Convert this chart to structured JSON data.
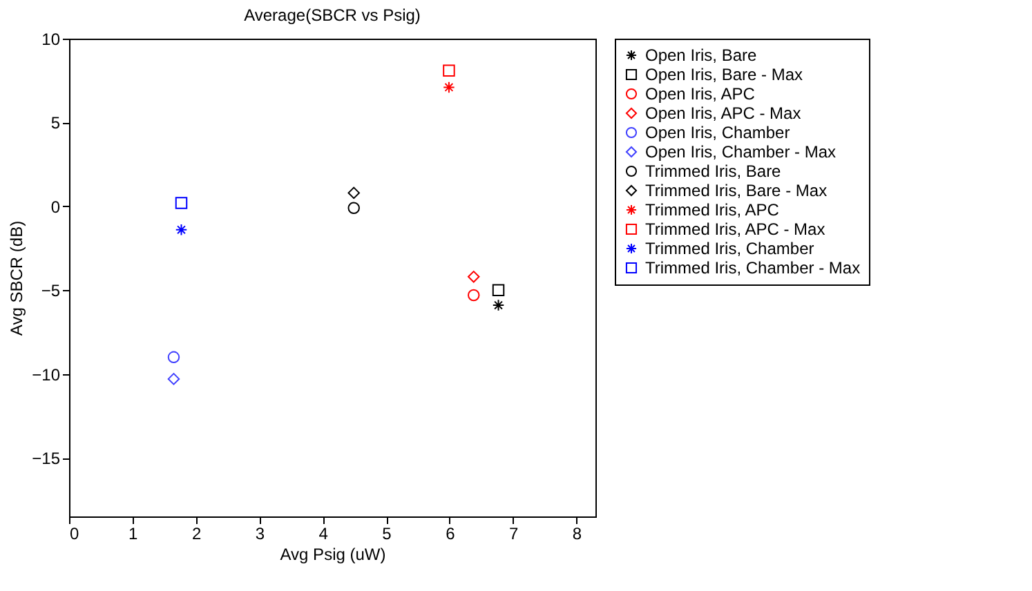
{
  "chart_data": {
    "type": "scatter",
    "title": "Average(SBCR vs Psig)",
    "xlabel": "Avg Psig (uW)",
    "ylabel": "Avg SBCR (dB)",
    "xlim": [
      0,
      8.3
    ],
    "ylim": [
      -18.5,
      10
    ],
    "xticks": [
      0,
      1,
      2,
      3,
      4,
      5,
      6,
      7,
      8
    ],
    "yticks": [
      -15,
      -10,
      -5,
      0,
      5,
      10
    ],
    "legend": "right",
    "series": [
      {
        "name": "Open Iris, Bare",
        "color": "#000000",
        "marker": "cross",
        "x": [
          6.77
        ],
        "values": [
          -5.9
        ]
      },
      {
        "name": "Open Iris, Bare - Max",
        "color": "#000000",
        "marker": "square",
        "x": [
          6.77
        ],
        "values": [
          -5.0
        ]
      },
      {
        "name": "Open Iris, APC",
        "color": "#ff0000",
        "marker": "circle",
        "x": [
          6.38
        ],
        "values": [
          -5.3
        ]
      },
      {
        "name": "Open Iris, APC - Max",
        "color": "#ff0000",
        "marker": "diamond",
        "x": [
          6.38
        ],
        "values": [
          -4.2
        ]
      },
      {
        "name": "Open Iris, Chamber",
        "color": "#4040ff",
        "marker": "circle",
        "x": [
          1.65
        ],
        "values": [
          -9.0
        ]
      },
      {
        "name": "Open Iris, Chamber - Max",
        "color": "#4040ff",
        "marker": "diamond",
        "x": [
          1.65
        ],
        "values": [
          -10.3
        ]
      },
      {
        "name": "Trimmed Iris, Bare",
        "color": "#000000",
        "marker": "circle",
        "x": [
          4.49
        ],
        "values": [
          -0.1
        ]
      },
      {
        "name": "Trimmed Iris, Bare - Max",
        "color": "#000000",
        "marker": "diamond",
        "x": [
          4.49
        ],
        "values": [
          0.8
        ]
      },
      {
        "name": "Trimmed Iris, APC",
        "color": "#ff0000",
        "marker": "cross",
        "x": [
          5.99
        ],
        "values": [
          7.1
        ]
      },
      {
        "name": "Trimmed Iris, APC - Max",
        "color": "#ff0000",
        "marker": "square",
        "x": [
          5.99
        ],
        "values": [
          8.1
        ]
      },
      {
        "name": "Trimmed Iris, Chamber",
        "color": "#0000ff",
        "marker": "cross",
        "x": [
          1.77
        ],
        "values": [
          -1.4
        ]
      },
      {
        "name": "Trimmed Iris, Chamber - Max",
        "color": "#0000ff",
        "marker": "square",
        "x": [
          1.77
        ],
        "values": [
          0.2
        ]
      }
    ]
  }
}
